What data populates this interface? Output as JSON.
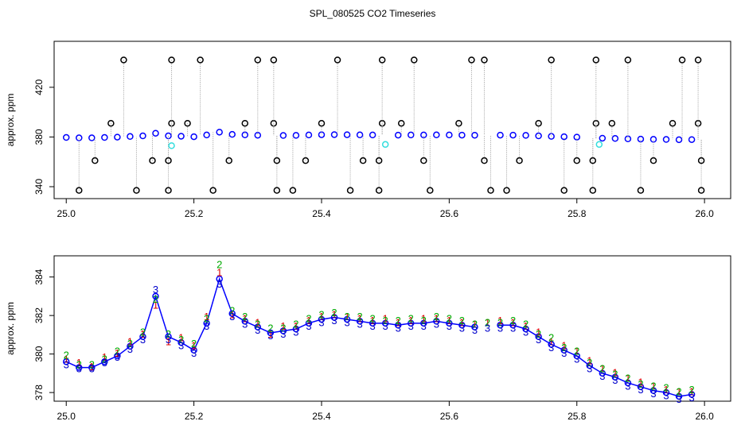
{
  "title": "SPL_080525  CO2 Timeseries",
  "chart_data": [
    {
      "type": "scatter",
      "ylabel": "approx. ppm",
      "xlim": [
        24.981,
        26.041
      ],
      "ylim": [
        330.4,
        457
      ],
      "xticks": [
        {
          "value": 25,
          "label": "25.0"
        },
        {
          "value": 25.2,
          "label": "25.2"
        },
        {
          "value": 25.4,
          "label": "25.4"
        },
        {
          "value": 25.6,
          "label": "25.6"
        },
        {
          "value": 25.8,
          "label": "25.8"
        },
        {
          "value": 26,
          "label": "26.0"
        }
      ],
      "yticks": [
        340,
        380,
        420
      ],
      "x": [
        25.0,
        25.02,
        25.04,
        25.06,
        25.08,
        25.1,
        25.12,
        25.14,
        25.16,
        25.18,
        25.2,
        25.22,
        25.24,
        25.26,
        25.28,
        25.3,
        25.32,
        25.34,
        25.36,
        25.38,
        25.4,
        25.42,
        25.44,
        25.46,
        25.48,
        25.5,
        25.52,
        25.54,
        25.56,
        25.58,
        25.6,
        25.62,
        25.64,
        25.66,
        25.68,
        25.7,
        25.72,
        25.74,
        25.76,
        25.78,
        25.8,
        25.82,
        25.84,
        25.86,
        25.88,
        25.9,
        25.92,
        25.94,
        25.96,
        25.98
      ],
      "series": [
        {
          "color": "#0000ff",
          "marker": "circle",
          "values": [
            379.6,
            379.3,
            379.3,
            379.6,
            379.9,
            380.4,
            380.9,
            383.0,
            380.9,
            380.6,
            380.2,
            381.6,
            383.9,
            382.1,
            381.7,
            381.4,
            null,
            381.2,
            381.3,
            381.6,
            381.8,
            381.9,
            381.8,
            381.7,
            381.6,
            null,
            381.5,
            381.6,
            381.6,
            381.7,
            381.6,
            381.5,
            381.4,
            null,
            381.5,
            381.5,
            381.3,
            380.9,
            380.5,
            380.2,
            379.9,
            null,
            379.0,
            378.8,
            378.5,
            378.3,
            378.1,
            378.0,
            377.8,
            377.9
          ]
        },
        {
          "color": "#000000",
          "marker": "circle",
          "drop_lines": true,
          "x": [
            25.02,
            25.045,
            25.07,
            25.09,
            25.11,
            25.135,
            25.16,
            25.16,
            25.165,
            25.165,
            25.19,
            25.21,
            25.23,
            25.255,
            25.28,
            25.3,
            25.325,
            25.325,
            25.33,
            25.33,
            25.355,
            25.375,
            25.4,
            25.425,
            25.445,
            25.465,
            25.49,
            25.49,
            25.495,
            25.495,
            25.525,
            25.545,
            25.56,
            25.57,
            25.615,
            25.635,
            25.655,
            25.655,
            25.665,
            25.69,
            25.71,
            25.74,
            25.76,
            25.78,
            25.8,
            25.825,
            25.825,
            25.83,
            25.83,
            25.855,
            25.88,
            25.9,
            25.92,
            25.95,
            25.965,
            25.99,
            25.99,
            25.995,
            25.995
          ],
          "values": [
            337,
            361,
            391,
            442,
            337,
            361,
            337,
            361,
            391,
            442,
            391,
            442,
            337,
            361,
            391,
            442,
            391,
            442,
            337,
            361,
            337,
            361,
            391,
            442,
            337,
            361,
            337,
            361,
            391,
            442,
            391,
            442,
            361,
            337,
            391,
            442,
            361,
            442,
            337,
            337,
            361,
            391,
            442,
            337,
            361,
            337,
            361,
            391,
            442,
            391,
            442,
            337,
            361,
            391,
            442,
            391,
            442,
            337,
            361
          ]
        },
        {
          "color": "#33dddd",
          "marker": "circle",
          "x": [
            25.165,
            25.5,
            25.835
          ],
          "values": [
            373,
            374,
            374
          ]
        }
      ]
    },
    {
      "type": "scatter",
      "ylabel": "approx. ppm",
      "xlim": [
        24.981,
        26.041
      ],
      "ylim": [
        377.55,
        385.1
      ],
      "xticks": [
        {
          "value": 25,
          "label": "25.0"
        },
        {
          "value": 25.2,
          "label": "25.2"
        },
        {
          "value": 25.4,
          "label": "25.4"
        },
        {
          "value": 25.6,
          "label": "25.6"
        },
        {
          "value": 25.8,
          "label": "25.8"
        },
        {
          "value": 26,
          "label": "26.0"
        }
      ],
      "yticks": [
        378,
        380,
        382,
        384
      ],
      "x": [
        25.0,
        25.02,
        25.04,
        25.06,
        25.08,
        25.1,
        25.12,
        25.14,
        25.16,
        25.18,
        25.2,
        25.22,
        25.24,
        25.26,
        25.28,
        25.3,
        25.32,
        25.34,
        25.36,
        25.38,
        25.4,
        25.42,
        25.44,
        25.46,
        25.48,
        25.5,
        25.52,
        25.54,
        25.56,
        25.58,
        25.6,
        25.62,
        25.64,
        25.66,
        25.68,
        25.7,
        25.72,
        25.74,
        25.76,
        25.78,
        25.8,
        25.82,
        25.84,
        25.86,
        25.88,
        25.9,
        25.92,
        25.94,
        25.96,
        25.98
      ],
      "series": [
        {
          "color": "#0000ff",
          "marker": "circle",
          "line": true,
          "values": [
            379.6,
            379.3,
            379.3,
            379.6,
            379.9,
            380.4,
            380.9,
            383.0,
            380.9,
            380.6,
            380.2,
            381.6,
            383.9,
            382.1,
            381.7,
            381.4,
            381.1,
            381.2,
            381.3,
            381.6,
            381.8,
            381.9,
            381.8,
            381.7,
            381.6,
            381.6,
            381.5,
            381.6,
            381.6,
            381.7,
            381.6,
            381.5,
            381.4,
            null,
            381.5,
            381.5,
            381.3,
            380.9,
            380.5,
            380.2,
            379.9,
            379.4,
            379.0,
            378.8,
            378.5,
            378.3,
            378.1,
            378.0,
            377.8,
            377.9
          ]
        },
        {
          "color": "#dd0000",
          "pch": "1",
          "values": [
            379.7,
            379.5,
            379.3,
            379.8,
            380.0,
            380.6,
            381.0,
            382.5,
            380.6,
            380.8,
            380.4,
            381.9,
            384.2,
            382.0,
            381.8,
            381.6,
            381.0,
            381.4,
            381.4,
            381.7,
            381.9,
            382.0,
            381.9,
            381.8,
            381.7,
            381.8,
            381.6,
            381.7,
            381.8,
            381.8,
            381.7,
            381.6,
            381.5,
            381.6,
            381.7,
            381.6,
            381.4,
            381.1,
            380.6,
            380.4,
            380.1,
            379.6,
            379.2,
            379.0,
            378.7,
            378.5,
            378.3,
            378.1,
            378.0,
            378.0
          ]
        },
        {
          "color": "#00aa00",
          "pch": "2",
          "values": [
            379.9,
            379.4,
            379.4,
            379.7,
            380.1,
            380.5,
            381.1,
            382.8,
            381.0,
            380.7,
            380.5,
            381.8,
            384.6,
            382.2,
            381.9,
            381.5,
            381.3,
            381.3,
            381.5,
            381.8,
            382.0,
            382.1,
            381.9,
            381.9,
            381.8,
            381.7,
            381.7,
            381.8,
            381.7,
            381.9,
            381.8,
            381.7,
            381.5,
            381.6,
            381.6,
            381.7,
            381.5,
            381.0,
            380.8,
            380.3,
            380.1,
            379.5,
            379.2,
            378.9,
            378.7,
            378.4,
            378.3,
            378.2,
            378.0,
            378.1
          ]
        },
        {
          "color": "#0000cc",
          "pch": "3",
          "values": [
            379.4,
            379.2,
            379.2,
            379.5,
            379.8,
            380.2,
            380.7,
            383.3,
            380.7,
            380.4,
            380.0,
            381.4,
            383.6,
            381.9,
            381.5,
            381.2,
            380.9,
            381.0,
            381.1,
            381.4,
            381.6,
            381.7,
            381.6,
            381.5,
            381.4,
            381.4,
            381.3,
            381.4,
            381.4,
            381.5,
            381.4,
            381.3,
            381.2,
            381.3,
            381.3,
            381.3,
            381.1,
            380.7,
            380.3,
            380.0,
            379.7,
            379.2,
            378.8,
            378.6,
            378.3,
            378.1,
            377.9,
            377.8,
            377.6,
            377.7
          ]
        }
      ]
    }
  ]
}
